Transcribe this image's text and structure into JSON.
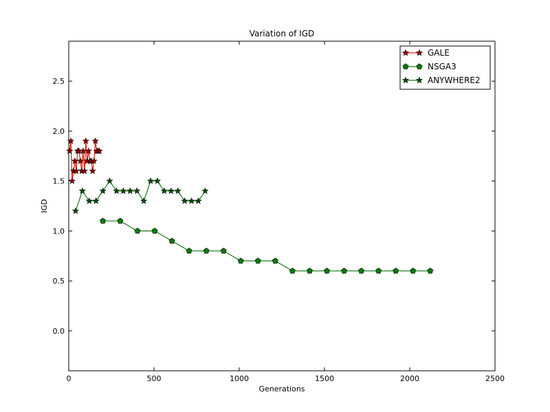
{
  "chart_data": {
    "type": "line",
    "title": "Variation of IGD",
    "xlabel": "Generations",
    "ylabel": "IGD",
    "xlim": [
      0,
      2500
    ],
    "ylim": [
      -0.4,
      2.9
    ],
    "xticks": [
      0,
      500,
      1000,
      1500,
      2000,
      2500
    ],
    "yticks": [
      0.0,
      0.5,
      1.0,
      1.5,
      2.0,
      2.5
    ],
    "xtick_labels": [
      "0",
      "500",
      "1000",
      "1500",
      "2000",
      "2500"
    ],
    "ytick_labels": [
      "0.0",
      "0.5",
      "1.0",
      "1.5",
      "2.0",
      "2.5"
    ],
    "grid": false,
    "legend_position": "top-right",
    "series": [
      {
        "name": "GALE",
        "color": "#e8190d",
        "marker": "star",
        "marker_fill": "#8b0000",
        "x": [
          5,
          12,
          20,
          28,
          36,
          44,
          52,
          60,
          68,
          76,
          84,
          92,
          100,
          108,
          116,
          124,
          132,
          140,
          148,
          156,
          164,
          172,
          180
        ],
        "y": [
          1.8,
          1.9,
          1.5,
          1.6,
          1.7,
          1.6,
          1.8,
          1.8,
          1.7,
          1.6,
          1.8,
          1.6,
          1.9,
          1.7,
          1.8,
          1.7,
          1.7,
          1.6,
          1.7,
          1.9,
          1.8,
          1.8,
          1.8
        ]
      },
      {
        "name": "NSGA3",
        "color": "#1a7a1a",
        "marker": "pentagon",
        "marker_fill": "#0a7a0a",
        "x": [
          200,
          302,
          403,
          504,
          605,
          706,
          807,
          908,
          1009,
          1110,
          1211,
          1312,
          1413,
          1514,
          1615,
          1716,
          1817,
          1918,
          2019,
          2120
        ],
        "y": [
          1.1,
          1.1,
          1.0,
          1.0,
          0.9,
          0.8,
          0.8,
          0.8,
          0.7,
          0.7,
          0.7,
          0.6,
          0.6,
          0.6,
          0.6,
          0.6,
          0.6,
          0.6,
          0.6,
          0.6
        ]
      },
      {
        "name": "ANYWHERE2",
        "color": "#1a7a1a",
        "marker": "star",
        "marker_fill": "#0a4a0a",
        "x": [
          40,
          80,
          120,
          160,
          200,
          240,
          280,
          320,
          360,
          400,
          440,
          480,
          520,
          560,
          600,
          640,
          680,
          720,
          760,
          800
        ],
        "y": [
          1.2,
          1.4,
          1.3,
          1.3,
          1.4,
          1.5,
          1.4,
          1.4,
          1.4,
          1.4,
          1.3,
          1.5,
          1.5,
          1.4,
          1.4,
          1.4,
          1.3,
          1.3,
          1.3,
          1.4
        ]
      }
    ]
  }
}
